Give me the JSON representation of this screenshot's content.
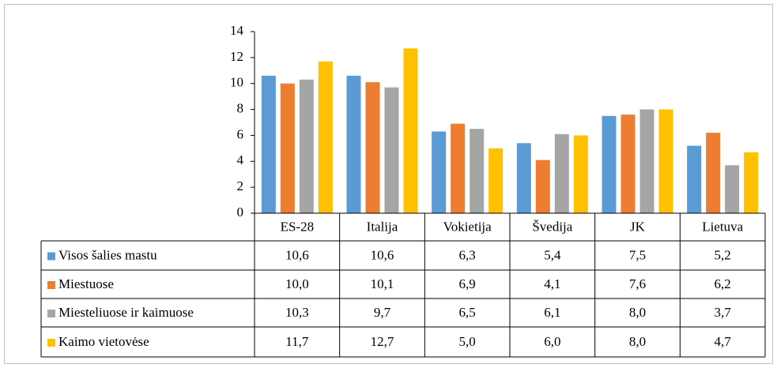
{
  "chart_data": {
    "type": "bar",
    "categories": [
      "ES-28",
      "Italija",
      "Vokietija",
      "Švedija",
      "JK",
      "Lietuva"
    ],
    "series": [
      {
        "name": "Visos šalies mastu",
        "color": "#5b9bd5",
        "values": [
          10.6,
          10.6,
          6.3,
          5.4,
          7.5,
          5.2
        ],
        "value_labels": [
          "10,6",
          "10,6",
          "6,3",
          "5,4",
          "7,5",
          "5,2"
        ]
      },
      {
        "name": "Miestuose",
        "color": "#ed7d31",
        "values": [
          10.0,
          10.1,
          6.9,
          4.1,
          7.6,
          6.2
        ],
        "value_labels": [
          "10,0",
          "10,1",
          "6,9",
          "4,1",
          "7,6",
          "6,2"
        ]
      },
      {
        "name": "Miesteliuose ir kaimuose",
        "color": "#a5a5a5",
        "values": [
          10.3,
          9.7,
          6.5,
          6.1,
          8.0,
          3.7
        ],
        "value_labels": [
          "10,3",
          "9,7",
          "6,5",
          "6,1",
          "8,0",
          "3,7"
        ]
      },
      {
        "name": "Kaimo vietovėse",
        "color": "#ffc000",
        "values": [
          11.7,
          12.7,
          5.0,
          6.0,
          8.0,
          4.7
        ],
        "value_labels": [
          "11,7",
          "12,7",
          "5,0",
          "6,0",
          "8,0",
          "4,7"
        ]
      }
    ],
    "ylim": [
      0,
      14
    ],
    "yticks": [
      0,
      2,
      4,
      6,
      8,
      10,
      12,
      14
    ],
    "grid": false,
    "legend": "table"
  }
}
